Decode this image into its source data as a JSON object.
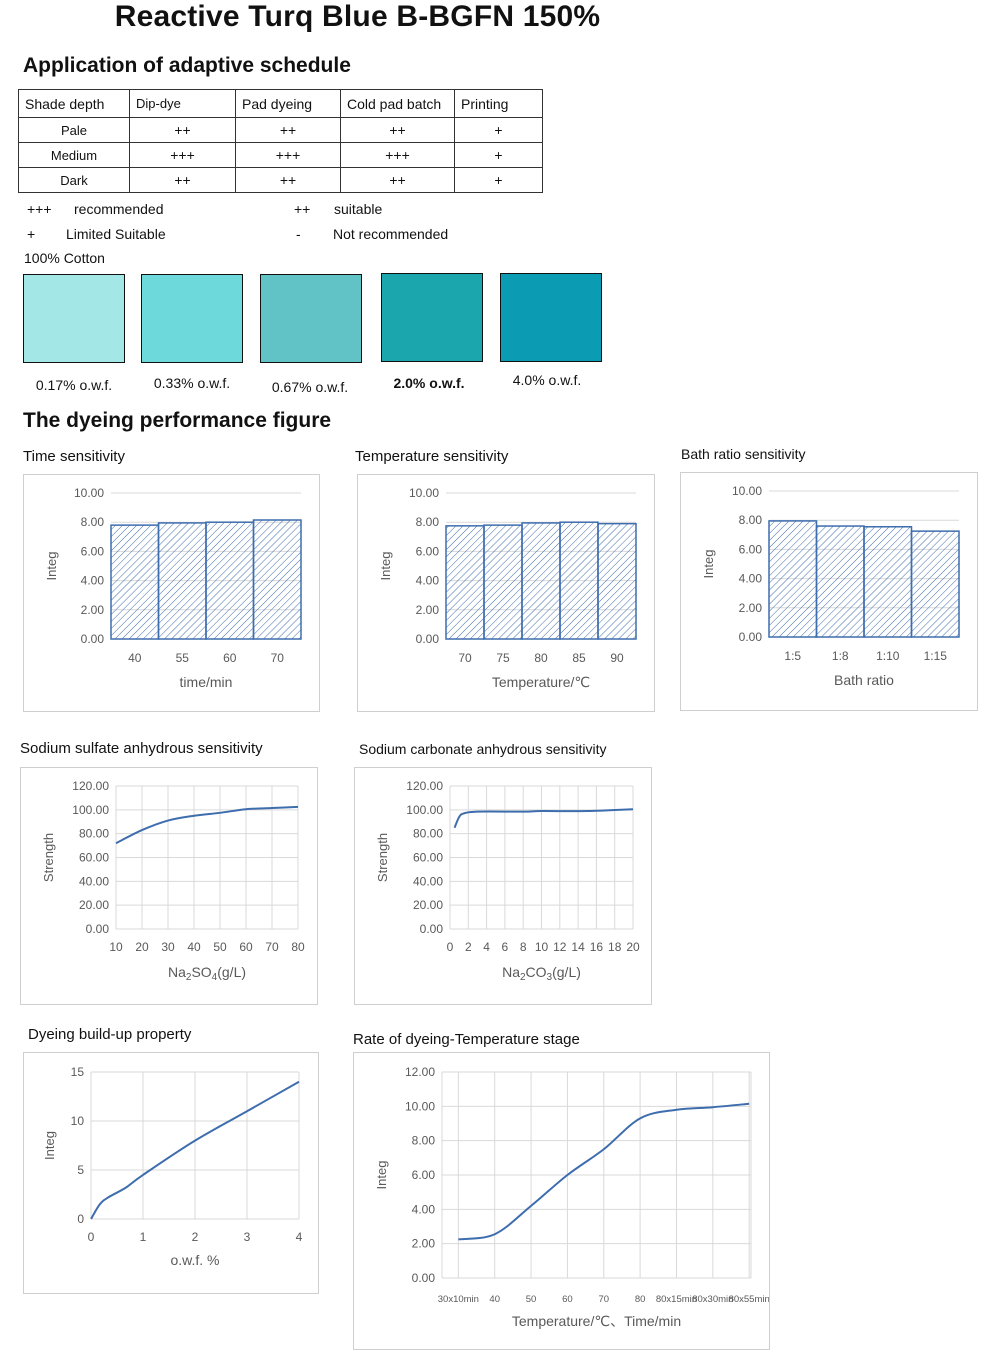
{
  "title": "Reactive Turq Blue B-BGFN 150%",
  "schedule": {
    "heading": "Application of adaptive schedule",
    "headers": [
      "Shade depth",
      "Dip-dye",
      "Pad dyeing",
      "Cold pad batch",
      "Printing"
    ],
    "rows": [
      [
        "Pale",
        "++",
        "++",
        "++",
        "+"
      ],
      [
        "Medium",
        "+++",
        "+++",
        "+++",
        "+"
      ],
      [
        "Dark",
        "++",
        "++",
        "++",
        "+"
      ]
    ]
  },
  "legend": {
    "recommended_sym": "+++",
    "recommended": "recommended",
    "suitable_sym": "++",
    "suitable": "suitable",
    "limited_sym": "+",
    "limited": "Limited Suitable",
    "not_sym": "-",
    "not": "Not recommended"
  },
  "shades": {
    "heading": "100% Cotton",
    "items": [
      {
        "label": "0.17% o.w.f.",
        "color": "#A3E7E6"
      },
      {
        "label": "0.33% o.w.f.",
        "color": "#6DD9DA"
      },
      {
        "label": "0.67% o.w.f.",
        "color": "#62C3C6"
      },
      {
        "label": "2.0% o.w.f.",
        "color": "#1BA6AD"
      },
      {
        "label": "4.0% o.w.f.",
        "color": "#0B9CB3"
      }
    ]
  },
  "performance_heading": "The dyeing performance figure",
  "accent_color": "#3E6DAE",
  "chart_data": [
    {
      "id": "time",
      "type": "bar",
      "title": "Time sensitivity",
      "xlabel": "time/min",
      "ylabel": "Integ",
      "categories": [
        "40",
        "55",
        "60",
        "70"
      ],
      "values": [
        7.8,
        7.95,
        8.0,
        8.15
      ],
      "ylim": [
        0,
        10
      ],
      "yticks": [
        "0.00",
        "2.00",
        "4.00",
        "6.00",
        "8.00",
        "10.00"
      ],
      "grid": true
    },
    {
      "id": "temp",
      "type": "bar",
      "title": "Temperature sensitivity",
      "xlabel": "Temperature/℃",
      "ylabel": "Integ",
      "categories": [
        "70",
        "75",
        "80",
        "85",
        "90"
      ],
      "values": [
        7.75,
        7.8,
        7.95,
        8.0,
        7.9
      ],
      "ylim": [
        0,
        10
      ],
      "yticks": [
        "0.00",
        "2.00",
        "4.00",
        "6.00",
        "8.00",
        "10.00"
      ],
      "grid": true
    },
    {
      "id": "bath",
      "type": "bar",
      "title": "Bath ratio sensitivity",
      "xlabel": "Bath ratio",
      "ylabel": "Integ",
      "categories": [
        "1:5",
        "1:8",
        "1:10",
        "1:15"
      ],
      "values": [
        7.95,
        7.6,
        7.55,
        7.25
      ],
      "ylim": [
        0,
        10
      ],
      "yticks": [
        "0.00",
        "2.00",
        "4.00",
        "6.00",
        "8.00",
        "10.00"
      ],
      "grid": true
    },
    {
      "id": "sulfate",
      "type": "line",
      "title": "Sodium sulfate anhydrous sensitivity",
      "xlabel_main": "Na",
      "xlabel_s1": "2",
      "xlabel_m": "SO",
      "xlabel_s2": "4",
      "xlabel_tail": "(g/L)",
      "ylabel": "Strength",
      "xcats": [
        "10",
        "20",
        "30",
        "40",
        "50",
        "60",
        "70",
        "80"
      ],
      "points": [
        [
          0,
          72
        ],
        [
          1,
          83
        ],
        [
          2,
          91
        ],
        [
          3,
          95
        ],
        [
          4,
          97.5
        ],
        [
          5,
          100.5
        ],
        [
          6,
          101.5
        ],
        [
          7,
          102.5
        ]
      ],
      "ylim": [
        0,
        120
      ],
      "yticks": [
        "0.00",
        "20.00",
        "40.00",
        "60.00",
        "80.00",
        "100.00",
        "120.00"
      ],
      "grid": true
    },
    {
      "id": "carbonate",
      "type": "line",
      "title": "Sodium carbonate anhydrous sensitivity",
      "xlabel_main": "Na",
      "xlabel_s1": "2",
      "xlabel_m": "CO",
      "xlabel_s2": "3",
      "xlabel_tail": "(g/L)",
      "ylabel": "Strength",
      "xcats": [
        "0",
        "2",
        "4",
        "6",
        "8",
        "10",
        "12",
        "14",
        "16",
        "18",
        "20"
      ],
      "points": [
        [
          0.5,
          85
        ],
        [
          1,
          94
        ],
        [
          1.5,
          97
        ],
        [
          3,
          98.5
        ],
        [
          8,
          98.5
        ],
        [
          10,
          99
        ],
        [
          15,
          99
        ],
        [
          20,
          100.5
        ]
      ],
      "ylim": [
        0,
        120
      ],
      "yticks": [
        "0.00",
        "20.00",
        "40.00",
        "60.00",
        "80.00",
        "100.00",
        "120.00"
      ],
      "grid": true
    },
    {
      "id": "buildup",
      "type": "line",
      "title": "Dyeing build-up property",
      "xlabel": "o.w.f. %",
      "ylabel": "Integ",
      "xcats": [
        "0",
        "1",
        "2",
        "3",
        "4"
      ],
      "points": [
        [
          0,
          0
        ],
        [
          0.17,
          1.5
        ],
        [
          0.33,
          2.2
        ],
        [
          0.67,
          3.2
        ],
        [
          1,
          4.5
        ],
        [
          2,
          8
        ],
        [
          3,
          11
        ],
        [
          4,
          14
        ]
      ],
      "ylim": [
        0,
        15
      ],
      "yticks": [
        "0",
        "5",
        "10",
        "15"
      ],
      "grid": true
    },
    {
      "id": "rate",
      "type": "line",
      "title": "Rate of dyeing-Temperature stage",
      "xlabel": "Temperature/℃、Time/min",
      "ylabel": "Integ",
      "xcats": [
        "30x10min",
        "40",
        "50",
        "60",
        "70",
        "80",
        "80x15min",
        "80x30min",
        "80x55min"
      ],
      "points": [
        [
          0,
          2.25
        ],
        [
          1,
          2.55
        ],
        [
          2,
          4.2
        ],
        [
          3,
          6.0
        ],
        [
          4,
          7.5
        ],
        [
          5,
          9.3
        ],
        [
          6,
          9.8
        ],
        [
          7,
          9.95
        ],
        [
          8,
          10.15
        ]
      ],
      "ylim": [
        0,
        12
      ],
      "yticks": [
        "0.00",
        "2.00",
        "4.00",
        "6.00",
        "8.00",
        "10.00",
        "12.00"
      ],
      "grid": true
    }
  ]
}
